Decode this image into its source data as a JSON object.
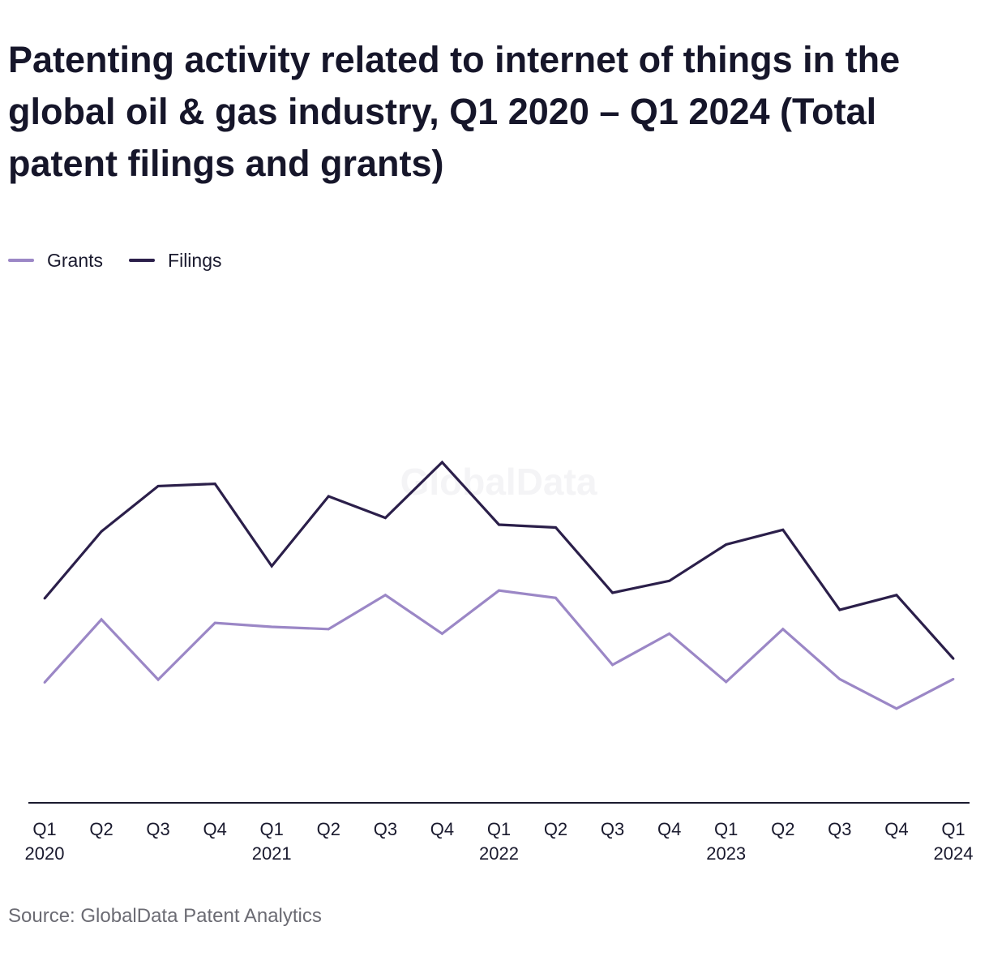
{
  "title": "Patenting activity related to internet of things in the global oil & gas industry, Q1 2020 – Q1 2024 (Total patent filings and grants)",
  "source": "Source: GlobalData Patent Analytics",
  "watermark": "GlobalData",
  "colors": {
    "grants": "#9b87c6",
    "filings": "#2b1f4a",
    "axis": "#1a1a2e",
    "watermark": "#f4f4f6"
  },
  "chart_data": {
    "type": "line",
    "categories": [
      "Q1 2020",
      "Q2 2020",
      "Q3 2020",
      "Q4 2020",
      "Q1 2021",
      "Q2 2021",
      "Q3 2021",
      "Q4 2021",
      "Q1 2022",
      "Q2 2022",
      "Q3 2022",
      "Q4 2022",
      "Q1 2023",
      "Q2 2023",
      "Q3 2023",
      "Q4 2023",
      "Q1 2024"
    ],
    "tick_labels": [
      {
        "quarter": "Q1",
        "year": "2020"
      },
      {
        "quarter": "Q2",
        "year": ""
      },
      {
        "quarter": "Q3",
        "year": ""
      },
      {
        "quarter": "Q4",
        "year": ""
      },
      {
        "quarter": "Q1",
        "year": "2021"
      },
      {
        "quarter": "Q2",
        "year": ""
      },
      {
        "quarter": "Q3",
        "year": ""
      },
      {
        "quarter": "Q4",
        "year": ""
      },
      {
        "quarter": "Q1",
        "year": "2022"
      },
      {
        "quarter": "Q2",
        "year": ""
      },
      {
        "quarter": "Q3",
        "year": ""
      },
      {
        "quarter": "Q4",
        "year": ""
      },
      {
        "quarter": "Q1",
        "year": "2023"
      },
      {
        "quarter": "Q2",
        "year": ""
      },
      {
        "quarter": "Q3",
        "year": ""
      },
      {
        "quarter": "Q4",
        "year": ""
      },
      {
        "quarter": "Q1",
        "year": "2024"
      }
    ],
    "series": [
      {
        "name": "Grants",
        "values": [
          212,
          323,
          217,
          317,
          310,
          306,
          366,
          298,
          374,
          361,
          243,
          298,
          213,
          306,
          218,
          166,
          218
        ]
      },
      {
        "name": "Filings",
        "values": [
          360,
          478,
          558,
          562,
          417,
          540,
          502,
          600,
          490,
          485,
          370,
          391,
          455,
          481,
          340,
          366,
          254
        ]
      }
    ],
    "ylim": [
      0,
      811
    ],
    "legend_position": "top-left",
    "grid": false,
    "y_axis_labels": false
  }
}
